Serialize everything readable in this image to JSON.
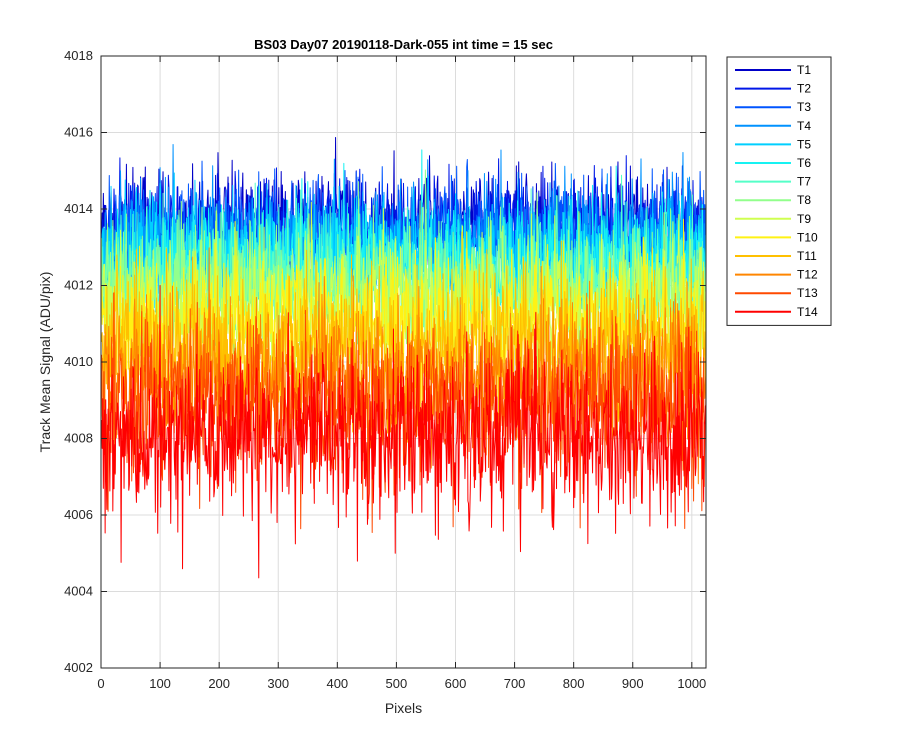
{
  "chart_data": {
    "type": "line",
    "title": "BS03 Day07 20190118-Dark-055 int time = 15 sec",
    "xlabel": "Pixels",
    "ylabel": "Track Mean Signal (ADU/pix)",
    "xlim": [
      0,
      1024
    ],
    "ylim": [
      4002,
      4018
    ],
    "xticks": [
      0,
      100,
      200,
      300,
      400,
      500,
      600,
      700,
      800,
      900,
      1000
    ],
    "yticks": [
      4002,
      4004,
      4006,
      4008,
      4010,
      4012,
      4014,
      4016,
      4018
    ],
    "grid": true,
    "legend_position": "outside-top-right",
    "x_range_points": [
      1,
      1024
    ],
    "series": [
      {
        "name": "T1",
        "color": "#0000C8",
        "mean": 4013.6,
        "noise_sd": 0.65,
        "min": 4012.0,
        "max": 4016.2
      },
      {
        "name": "T2",
        "color": "#0017E8",
        "mean": 4013.5,
        "noise_sd": 0.65,
        "min": 4011.9,
        "max": 4016.1
      },
      {
        "name": "T3",
        "color": "#0055FF",
        "mean": 4013.3,
        "noise_sd": 0.7,
        "min": 4011.6,
        "max": 4016.0
      },
      {
        "name": "T4",
        "color": "#0092FF",
        "mean": 4013.1,
        "noise_sd": 0.75,
        "min": 4011.3,
        "max": 4016.6
      },
      {
        "name": "T5",
        "color": "#00CFFF",
        "mean": 4012.8,
        "noise_sd": 0.75,
        "min": 4011.0,
        "max": 4016.5
      },
      {
        "name": "T6",
        "color": "#17F2F2",
        "mean": 4012.5,
        "noise_sd": 0.75,
        "min": 4010.6,
        "max": 4016.0
      },
      {
        "name": "T7",
        "color": "#55FFC8",
        "mean": 4012.2,
        "noise_sd": 0.75,
        "min": 4010.3,
        "max": 4015.8
      },
      {
        "name": "T8",
        "color": "#92FF8C",
        "mean": 4011.9,
        "noise_sd": 0.8,
        "min": 4009.9,
        "max": 4015.7
      },
      {
        "name": "T9",
        "color": "#CFFF50",
        "mean": 4011.5,
        "noise_sd": 0.8,
        "min": 4009.4,
        "max": 4015.5
      },
      {
        "name": "T10",
        "color": "#FFF214",
        "mean": 4011.0,
        "noise_sd": 0.85,
        "min": 4008.8,
        "max": 4015.0
      },
      {
        "name": "T11",
        "color": "#FFC000",
        "mean": 4010.3,
        "noise_sd": 0.95,
        "min": 4007.8,
        "max": 4014.5
      },
      {
        "name": "T12",
        "color": "#FF8600",
        "mean": 4009.6,
        "noise_sd": 1.0,
        "min": 4006.8,
        "max": 4013.7
      },
      {
        "name": "T13",
        "color": "#FF4A00",
        "mean": 4008.9,
        "noise_sd": 1.05,
        "min": 4005.5,
        "max": 4013.2
      },
      {
        "name": "T14",
        "color": "#FF0000",
        "mean": 4008.0,
        "noise_sd": 1.1,
        "min": 4003.3,
        "max": 4012.5
      }
    ]
  }
}
